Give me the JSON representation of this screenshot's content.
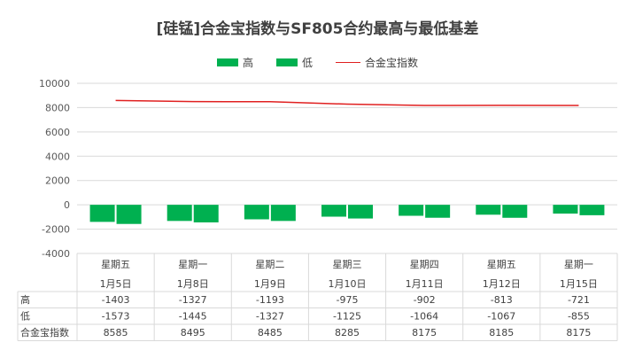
{
  "title": "[硅锰]合金宝指数与SF805合约最高与最低基差",
  "colors": {
    "bar": "#00b050",
    "line": "#e02020",
    "grid": "#d9d9d9"
  },
  "chart_data": {
    "type": "bar",
    "title": "[硅锰]合金宝指数与SF805合约最高与最低基差",
    "categories": [
      "星期五",
      "星期一",
      "星期二",
      "星期三",
      "星期四",
      "星期五",
      "星期一"
    ],
    "dates": [
      "1月5日",
      "1月8日",
      "1月9日",
      "1月10日",
      "1月11日",
      "1月12日",
      "1月15日"
    ],
    "series": [
      {
        "name": "高",
        "type": "bar",
        "values": [
          -1403,
          -1327,
          -1193,
          -975,
          -902,
          -813,
          -721
        ]
      },
      {
        "name": "低",
        "type": "bar",
        "values": [
          -1573,
          -1445,
          -1327,
          -1125,
          -1064,
          -1067,
          -855
        ]
      },
      {
        "name": "合金宝指数",
        "type": "line",
        "values": [
          8585,
          8495,
          8485,
          8285,
          8175,
          8185,
          8175
        ]
      }
    ],
    "ylim": [
      -4000,
      10000
    ],
    "yticks": [
      10000,
      8000,
      6000,
      4000,
      2000,
      0,
      -2000,
      -4000
    ],
    "xlabel": "",
    "ylabel": "",
    "legend": "top-center",
    "grid": true,
    "data_table": true
  }
}
